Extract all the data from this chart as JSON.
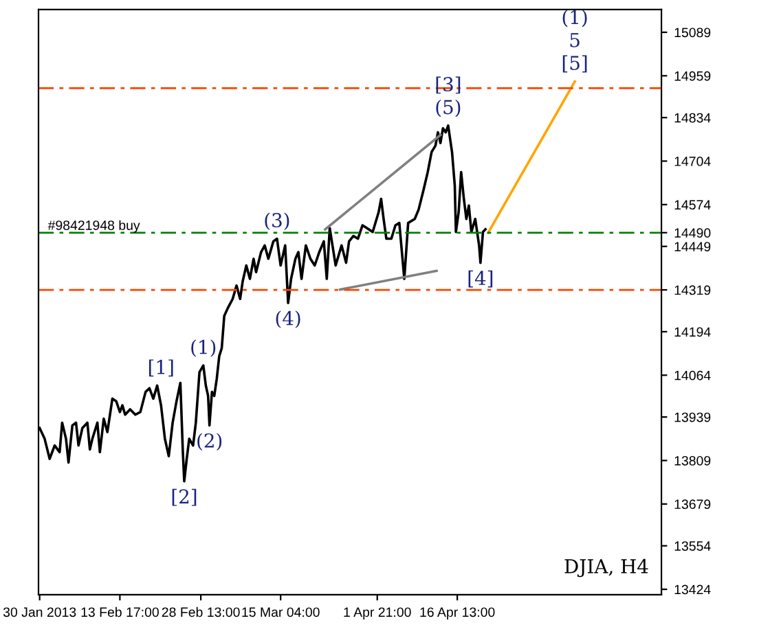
{
  "chart_data": {
    "type": "line",
    "x": [
      "2013-01-30T00:00",
      "2013-01-30T22:00",
      "2013-01-31T20:00",
      "2013-02-01T18:00",
      "2013-02-02T16:00",
      "2013-02-03T03:00",
      "2013-02-03T20:00",
      "2013-02-04T07:00",
      "2013-02-05T00:00",
      "2013-02-05T16:00",
      "2013-02-06T03:00",
      "2013-02-06T20:00",
      "2013-02-07T18:00",
      "2013-02-08T05:00",
      "2013-02-08T16:00",
      "2013-02-09T14:00",
      "2013-02-10T01:00",
      "2013-02-10T18:00",
      "2013-02-11T10:00",
      "2013-02-12T08:00",
      "2013-02-13T01:00",
      "2013-02-13T17:00",
      "2013-02-14T04:00",
      "2013-02-14T16:00",
      "2013-02-15T14:00",
      "2013-02-16T13:00",
      "2013-02-17T11:00",
      "2013-02-18T10:00",
      "2013-02-19T03:00",
      "2013-02-19T20:00",
      "2013-02-20T13:00",
      "2013-02-21T06:00",
      "2013-02-21T23:00",
      "2013-02-22T16:00",
      "2013-02-23T09:00",
      "2013-02-24T02:00",
      "2013-02-24T19:00",
      "2013-02-25T06:00",
      "2013-02-25T12:00",
      "2013-02-25T23:00",
      "2013-02-26T10:00",
      "2013-02-27T03:00",
      "2013-02-27T15:00",
      "2013-02-28T07:00",
      "2013-03-01T00:00",
      "2013-03-01T11:00",
      "2013-03-01T21:00",
      "2013-03-02T03:00",
      "2013-03-02T14:00",
      "2013-03-03T00:00",
      "2013-03-03T11:00",
      "2013-03-03T22:00",
      "2013-03-04T09:00",
      "2013-03-04T20:00",
      "2013-03-05T12:00",
      "2013-03-06T09:00",
      "2013-03-07T02:00",
      "2013-03-07T18:00",
      "2013-03-08T05:00",
      "2013-03-08T21:00",
      "2013-03-09T13:00",
      "2013-03-10T05:00",
      "2013-03-10T16:00",
      "2013-03-11T14:00",
      "2013-03-12T06:00",
      "2013-03-12T22:00",
      "2013-03-13T20:00",
      "2013-03-14T12:00",
      "2013-03-15T04:00",
      "2013-03-16T00:00",
      "2013-03-16T13:00",
      "2013-03-17T02:00",
      "2013-03-17T21:00",
      "2013-03-18T10:00",
      "2013-03-19T00:00",
      "2013-03-19T19:00",
      "2013-03-20T15:00",
      "2013-03-21T10:00",
      "2013-03-22T06:00",
      "2013-03-23T02:00",
      "2013-03-23T15:00",
      "2013-03-24T04:00",
      "2013-03-25T06:00",
      "2013-03-26T08:00",
      "2013-03-27T04:00",
      "2013-03-27T17:00",
      "2013-03-28T12:00",
      "2013-03-29T08:00",
      "2013-03-30T04:00",
      "2013-03-30T23:00",
      "2013-04-01T01:00",
      "2013-04-02T03:00",
      "2013-04-02T14:00",
      "2013-04-03T01:00",
      "2013-04-03T13:00",
      "2013-04-04T11:00",
      "2013-04-05T05:00",
      "2013-04-05T22:00",
      "2013-04-06T20:00",
      "2013-04-07T13:00",
      "2013-04-08T18:00",
      "2013-04-09T11:00",
      "2013-04-10T09:00",
      "2013-04-11T03:00",
      "2013-04-11T20:00",
      "2013-04-12T13:00",
      "2013-04-13T00:00",
      "2013-04-13T11:00",
      "2013-04-13T22:00",
      "2013-04-14T10:00",
      "2013-04-14T21:00",
      "2013-04-15T14:00",
      "2013-04-16T02:00",
      "2013-04-16T07:00",
      "2013-04-16T19:00",
      "2013-04-17T06:00",
      "2013-04-17T18:00",
      "2013-04-18T05:00",
      "2013-04-18T16:00",
      "2013-04-19T03:00",
      "2013-04-19T20:00",
      "2013-04-20T13:00",
      "2013-04-20T19:00",
      "2013-04-21T06:00",
      "2013-04-21T17:00"
    ],
    "series": [
      {
        "color": "#000000",
        "values": [
          13906,
          13874,
          13814,
          13854,
          13834,
          13922,
          13874,
          13803,
          13914,
          13922,
          13854,
          13906,
          13922,
          13842,
          13874,
          13922,
          13834,
          13934,
          13894,
          13994,
          13986,
          13954,
          13974,
          13946,
          13962,
          13946,
          13954,
          14014,
          14025,
          13994,
          14033,
          13974,
          13874,
          13822,
          13922,
          13986,
          14041,
          13834,
          13747,
          13814,
          13874,
          13854,
          13922,
          14073,
          14093,
          14033,
          14002,
          13914,
          14014,
          14002,
          14053,
          14121,
          14145,
          14241,
          14265,
          14292,
          14332,
          14292,
          14344,
          14392,
          14352,
          14412,
          14372,
          14432,
          14452,
          14412,
          14464,
          14472,
          14392,
          14452,
          14280,
          14352,
          14412,
          14432,
          14352,
          14452,
          14412,
          14392,
          14432,
          14464,
          14352,
          14504,
          14392,
          14452,
          14400,
          14464,
          14480,
          14472,
          14512,
          14504,
          14492,
          14551,
          14591,
          14531,
          14472,
          14472,
          14512,
          14519,
          14352,
          14519,
          14531,
          14559,
          14619,
          14671,
          14731,
          14750,
          14790,
          14758,
          14802,
          14790,
          14810,
          14731,
          14631,
          14492,
          14551,
          14671,
          14591,
          14531,
          14571,
          14492,
          14531,
          14452,
          14400,
          14492,
          14500
        ]
      },
      {
        "color": "#ffa500",
        "x": [
          "2013-04-22T05:00",
          "2013-05-08T02:00"
        ],
        "values": [
          14490,
          14942
        ]
      },
      {
        "color": "#808080",
        "x": [
          "2013-03-23T08:00",
          "2013-04-13T11:00"
        ],
        "values": [
          14500,
          14782
        ]
      },
      {
        "color": "#808080",
        "x": [
          "2013-03-26T02:00",
          "2013-04-12T18:00"
        ],
        "values": [
          14320,
          14376
        ]
      }
    ],
    "xlim": [
      "2013-01-29T19:00",
      "2013-05-23T23:00"
    ],
    "ylim": [
      13408,
      15157
    ],
    "xticks": [
      {
        "value": "2013-01-30T00:00",
        "label": "30 Jan 2013"
      },
      {
        "value": "2013-02-13T17:00",
        "label": "13 Feb 17:00"
      },
      {
        "value": "2013-02-28T13:00",
        "label": "28 Feb 13:00"
      },
      {
        "value": "2013-03-15T04:00",
        "label": "15 Mar 04:00"
      },
      {
        "value": "2013-04-01T21:00",
        "label": "1 Apr 21:00"
      },
      {
        "value": "2013-04-16T13:00",
        "label": "16 Apr 13:00"
      }
    ],
    "yticks": [
      13424,
      13554,
      13679,
      13809,
      13939,
      14064,
      14194,
      14319,
      14449,
      14490,
      14574,
      14704,
      14834,
      14959,
      15089
    ],
    "ref_lines": [
      {
        "axis": "y",
        "value": 14922,
        "label": null,
        "color": "#ff4500",
        "line_style": "dashed"
      },
      {
        "axis": "y",
        "value": 14490,
        "label": "#98421948 buy",
        "color": "#008000",
        "line_style": "dashed"
      },
      {
        "axis": "y",
        "value": 14319,
        "label": null,
        "color": "#ff4500",
        "line_style": "dashed"
      }
    ],
    "annotations": [
      {
        "text": "[1]",
        "x": "2013-02-21T06:00",
        "y": 14033
      },
      {
        "text": "[2]",
        "x": "2013-02-25T12:00",
        "y": 13747
      },
      {
        "text": "(1)",
        "x": "2013-03-01T00:00",
        "y": 14093
      },
      {
        "text": "(2)",
        "x": "2013-03-02T03:00",
        "y": 13914
      },
      {
        "text": "(3)",
        "x": "2013-03-14T12:00",
        "y": 14472
      },
      {
        "text": "(4)",
        "x": "2013-03-16T13:00",
        "y": 14280
      },
      {
        "text": "(5)",
        "x": "2013-04-14T21:00",
        "y": 14810
      },
      {
        "text": "[3]",
        "x": "2013-04-14T21:00",
        "y": 14810
      },
      {
        "text": "[4]",
        "x": "2013-04-20T19:00",
        "y": 14400
      },
      {
        "text": "[5]",
        "x": "2013-05-08T02:00",
        "y": 14942
      },
      {
        "text": "5",
        "x": "2013-05-08T02:00",
        "y": 14942
      },
      {
        "text": "(1)",
        "x": "2013-05-08T02:00",
        "y": 14942
      },
      "DJIA, H4"
    ],
    "grid": false,
    "legend": false
  }
}
